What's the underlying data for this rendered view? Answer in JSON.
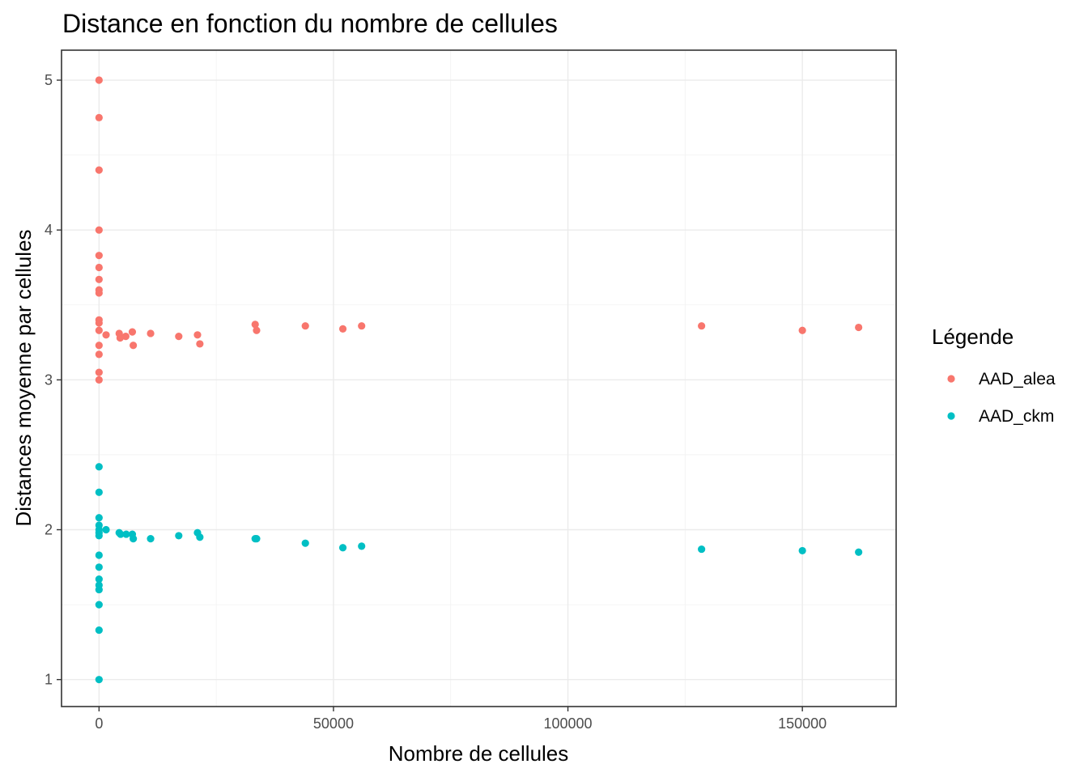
{
  "chart_data": {
    "type": "scatter",
    "title": "Distance en fonction du nombre de cellules",
    "xlabel": "Nombre de cellules",
    "ylabel": "Distances moyenne par cellules",
    "xlim": [
      -8000,
      170000
    ],
    "ylim": [
      0.82,
      5.2
    ],
    "x_ticks": [
      0,
      50000,
      100000,
      150000
    ],
    "x_tick_labels": [
      "0",
      "50000",
      "100000",
      "150000"
    ],
    "y_ticks": [
      1,
      2,
      3,
      4,
      5
    ],
    "y_tick_labels": [
      "1",
      "2",
      "3",
      "4",
      "5"
    ],
    "grid": true,
    "legend": {
      "title": "Légende",
      "position": "right",
      "entries": [
        "AAD_alea",
        "AAD_ckm"
      ]
    },
    "colors": {
      "AAD_alea": "#f8766d",
      "AAD_ckm": "#00bfc4"
    },
    "series": [
      {
        "name": "AAD_alea",
        "color": "#f8766d",
        "points": [
          [
            0,
            5.0
          ],
          [
            0,
            4.75
          ],
          [
            0,
            4.4
          ],
          [
            0,
            4.0
          ],
          [
            0,
            3.83
          ],
          [
            0,
            3.75
          ],
          [
            0,
            3.67
          ],
          [
            0,
            3.6
          ],
          [
            0,
            3.58
          ],
          [
            0,
            3.4
          ],
          [
            0,
            3.38
          ],
          [
            0,
            3.33
          ],
          [
            0,
            3.23
          ],
          [
            0,
            3.17
          ],
          [
            0,
            3.05
          ],
          [
            0,
            3.0
          ],
          [
            1500,
            3.3
          ],
          [
            4300,
            3.31
          ],
          [
            4500,
            3.28
          ],
          [
            5700,
            3.29
          ],
          [
            7100,
            3.32
          ],
          [
            7300,
            3.23
          ],
          [
            11000,
            3.31
          ],
          [
            17000,
            3.29
          ],
          [
            21000,
            3.3
          ],
          [
            21500,
            3.24
          ],
          [
            33300,
            3.37
          ],
          [
            33600,
            3.33
          ],
          [
            44000,
            3.36
          ],
          [
            52000,
            3.34
          ],
          [
            56000,
            3.36
          ],
          [
            128500,
            3.36
          ],
          [
            150000,
            3.33
          ],
          [
            162000,
            3.35
          ]
        ]
      },
      {
        "name": "AAD_ckm",
        "color": "#00bfc4",
        "points": [
          [
            0,
            2.42
          ],
          [
            0,
            2.25
          ],
          [
            0,
            2.08
          ],
          [
            0,
            2.03
          ],
          [
            0,
            2.0
          ],
          [
            0,
            1.98
          ],
          [
            0,
            1.96
          ],
          [
            0,
            1.83
          ],
          [
            0,
            1.75
          ],
          [
            0,
            1.67
          ],
          [
            0,
            1.63
          ],
          [
            0,
            1.6
          ],
          [
            0,
            1.5
          ],
          [
            0,
            1.33
          ],
          [
            0,
            1.0
          ],
          [
            1500,
            2.0
          ],
          [
            4300,
            1.98
          ],
          [
            4600,
            1.97
          ],
          [
            5800,
            1.97
          ],
          [
            7100,
            1.97
          ],
          [
            7300,
            1.94
          ],
          [
            11000,
            1.94
          ],
          [
            17000,
            1.96
          ],
          [
            21000,
            1.98
          ],
          [
            21500,
            1.95
          ],
          [
            33300,
            1.94
          ],
          [
            33600,
            1.94
          ],
          [
            44000,
            1.91
          ],
          [
            52000,
            1.88
          ],
          [
            56000,
            1.89
          ],
          [
            128500,
            1.87
          ],
          [
            150000,
            1.86
          ],
          [
            162000,
            1.85
          ]
        ]
      }
    ]
  }
}
